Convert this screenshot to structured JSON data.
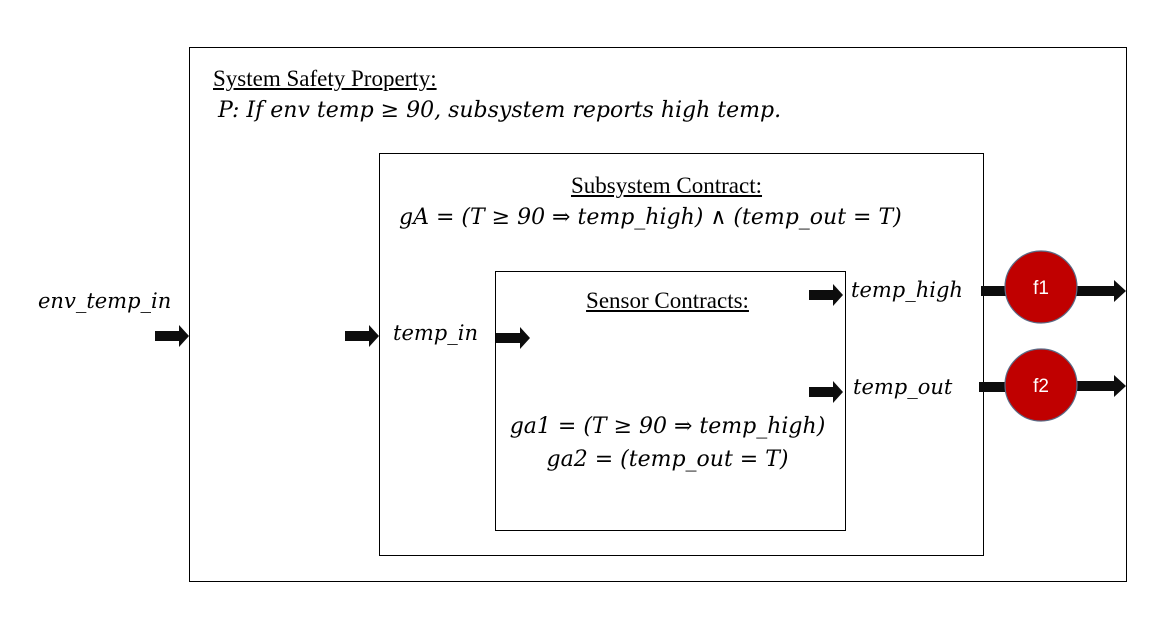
{
  "system": {
    "heading": "System Safety Property:",
    "property": "P: If env temp ≥ 90, subsystem reports high temp."
  },
  "subsystem": {
    "heading": "Subsystem Contract:",
    "contract": "gA = (T ≥ 90 ⇒ temp_high) ∧ (temp_out = T)"
  },
  "sensor": {
    "heading": "Sensor Contracts:",
    "contract_a1": "ga1 = (T ≥ 90 ⇒ temp_high)",
    "contract_a2": "ga2 = (temp_out = T)"
  },
  "signals": {
    "env_temp_in": "env_temp_in",
    "temp_in": "temp_in",
    "temp_high": "temp_high",
    "temp_out": "temp_out"
  },
  "faults": {
    "f1": "f1",
    "f2": "f2",
    "color": "#c00000"
  },
  "colors": {
    "arrow": "#0d0d0d"
  }
}
